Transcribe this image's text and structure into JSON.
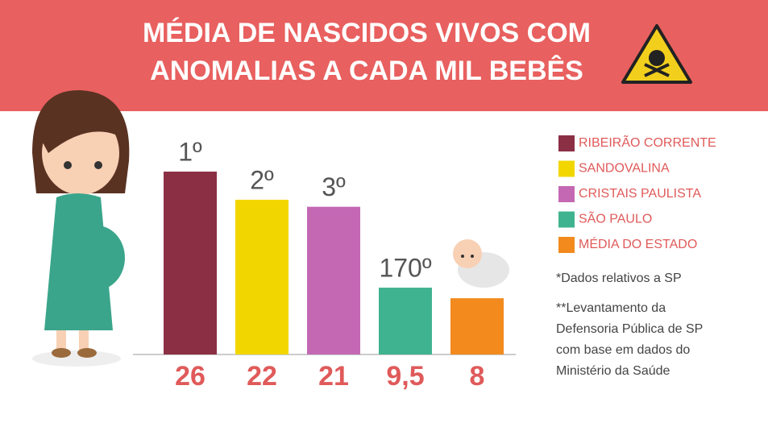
{
  "chart_data": {
    "type": "bar",
    "title": "MÉDIA DE NASCIDOS VIVOS COM ANOMALIAS A CADA MIL BEBÊS",
    "categories": [
      "RIBEIRÃO CORRENTE",
      "SANDOVALINA",
      "CRISTAIS  PAULISTA",
      "SÃO PAULO",
      "MÉDIA DO ESTADO"
    ],
    "values": [
      26,
      22,
      21,
      9.5,
      8
    ],
    "value_labels": [
      "26",
      "22",
      "21",
      "9,5",
      "8"
    ],
    "rank_labels": [
      "1º",
      "2º",
      "3º",
      "170º",
      null
    ],
    "colors": [
      "#8b2f45",
      "#f2d600",
      "#c468b4",
      "#3fb38f",
      "#f28a1e"
    ],
    "ylim": [
      0,
      26
    ],
    "notes": [
      "*Dados relativos a SP",
      "**Levantamento da Defensoria Pública de SP com base em dados do Ministério da Saúde"
    ]
  }
}
